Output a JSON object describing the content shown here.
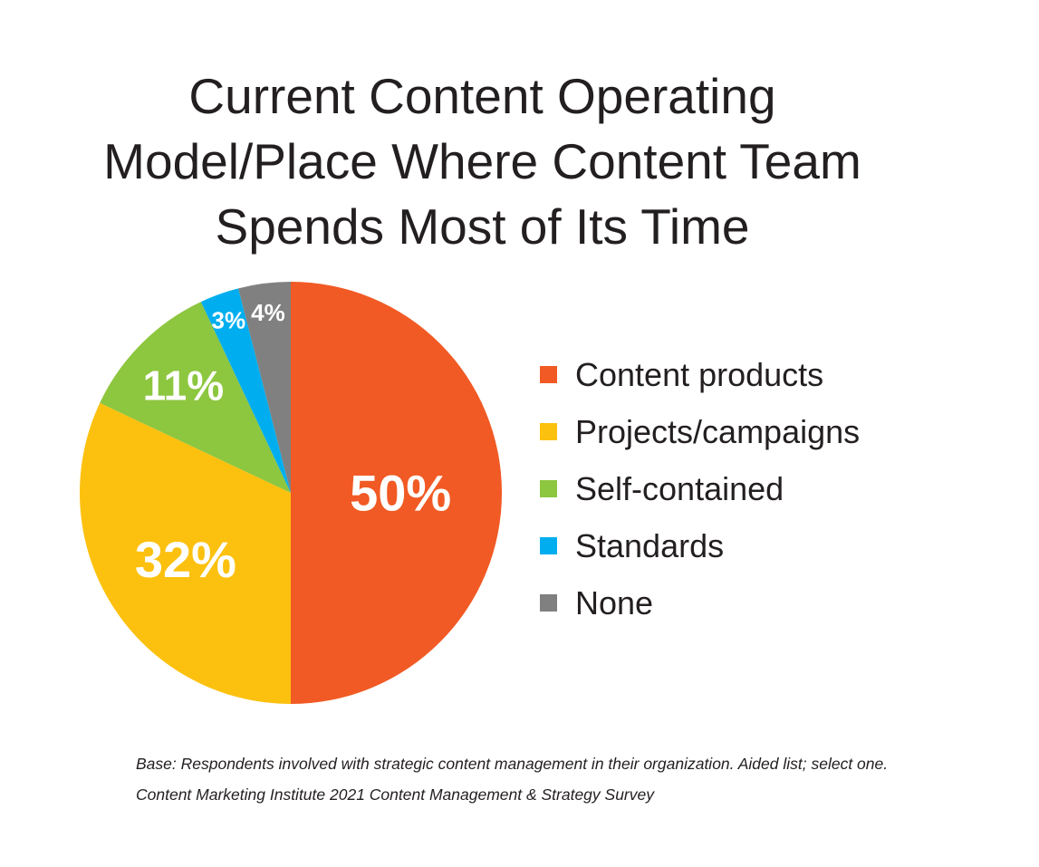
{
  "chart_data": {
    "type": "pie",
    "title_lines": [
      "Current Content Operating",
      "Model/Place Where Content Team",
      "Spends Most of Its Time"
    ],
    "slices": [
      {
        "label": "Content products",
        "value": 50,
        "value_label": "50%",
        "color": "#f15a24"
      },
      {
        "label": "Projects/campaigns",
        "value": 32,
        "value_label": "32%",
        "color": "#fcc10f"
      },
      {
        "label": "Self-contained",
        "value": 11,
        "value_label": "11%",
        "color": "#8dc63f"
      },
      {
        "label": "Standards",
        "value": 3,
        "value_label": "3%",
        "color": "#00aeef"
      },
      {
        "label": "None",
        "value": 4,
        "value_label": "4%",
        "color": "#808080"
      }
    ],
    "legend_position": "right",
    "label_color": "#ffffff"
  },
  "footnotes": {
    "base": "Base: Respondents involved with strategic content management in their organization. Aided list; select one.",
    "source": "Content Marketing Institute 2021 Content Management & Strategy Survey"
  }
}
